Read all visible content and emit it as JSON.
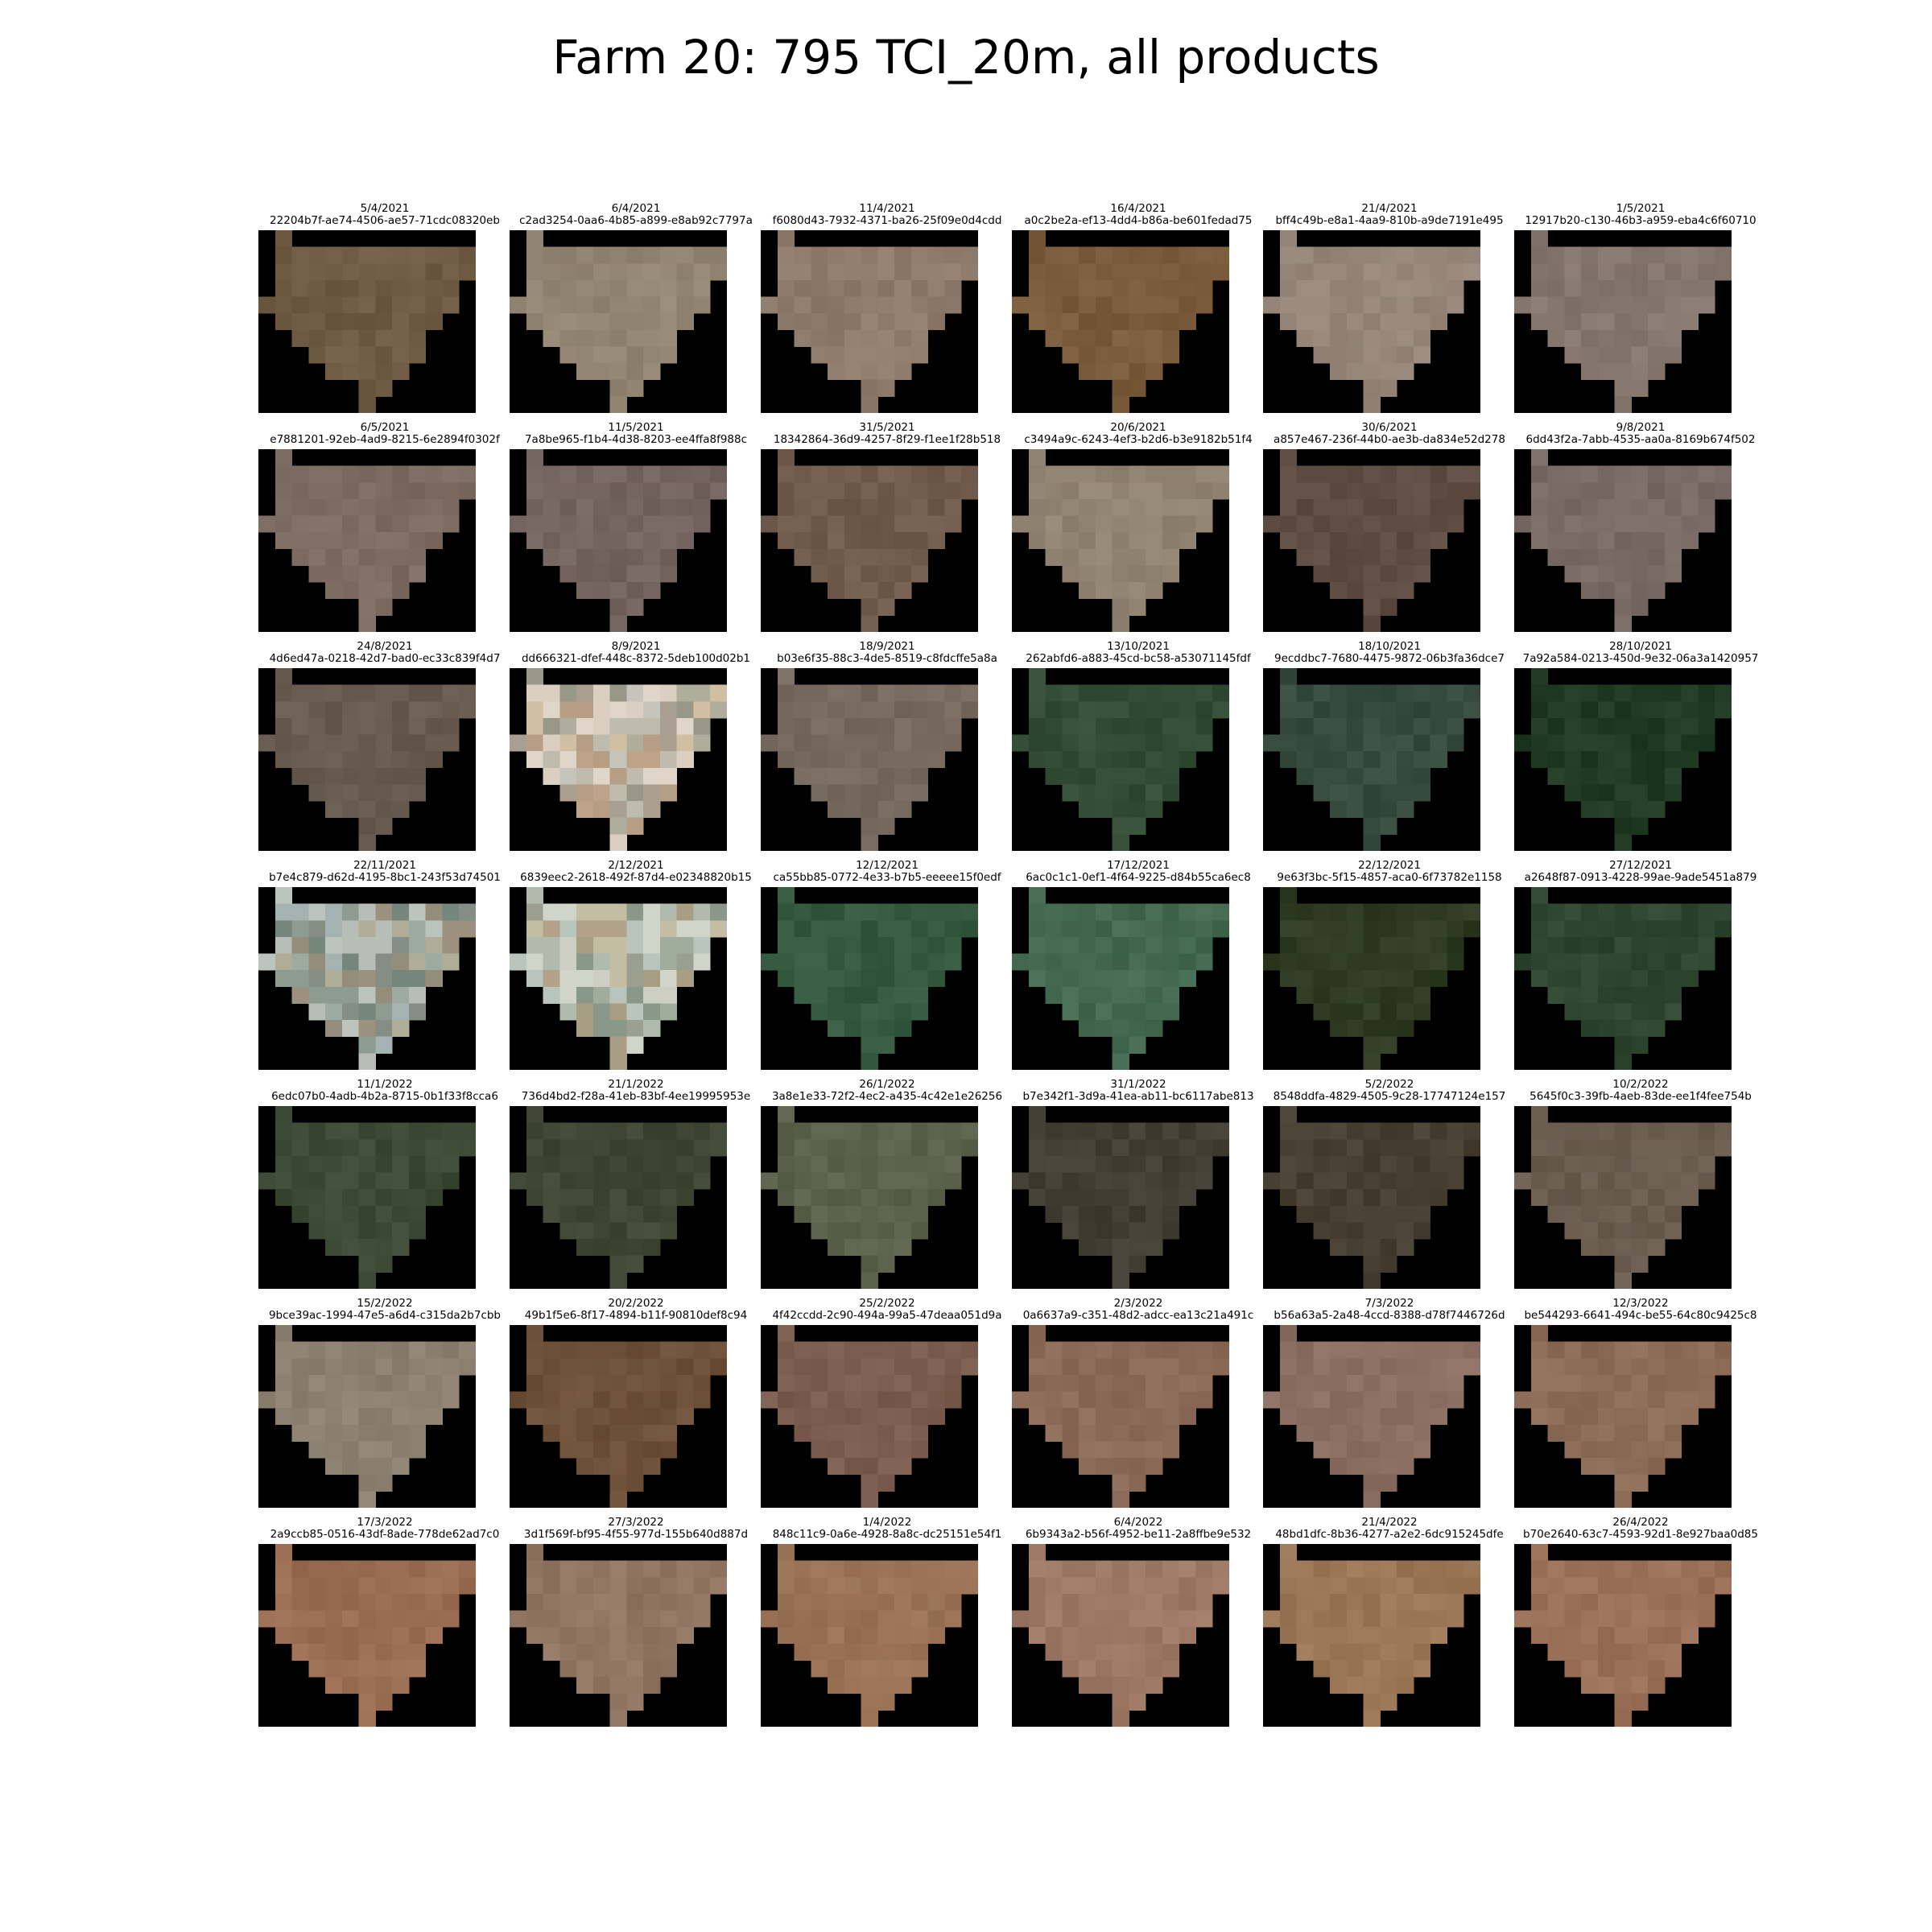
{
  "title": "Farm 20: 795 TCI_20m, all products",
  "tiles": [
    {
      "date": "5/4/2021",
      "id": "22204b7f-ae74-4506-ae57-71cdc08320eb",
      "color": "#6f5a43",
      "variant": "plain"
    },
    {
      "date": "6/4/2021",
      "id": "c2ad3254-0aa6-4b85-a899-e8ab92c7797a",
      "color": "#928571",
      "variant": "plain"
    },
    {
      "date": "11/4/2021",
      "id": "f6080d43-7932-4371-ba26-25f09e0d4cdd",
      "color": "#8f7b6b",
      "variant": "plain"
    },
    {
      "date": "16/4/2021",
      "id": "a0c2be2a-ef13-4dd4-b86a-be601fedad75",
      "color": "#7a5b3c",
      "variant": "plain"
    },
    {
      "date": "21/4/2021",
      "id": "bff4c49b-e8a1-4aa9-810b-a9de7191e495",
      "color": "#958679",
      "variant": "plain"
    },
    {
      "date": "1/5/2021",
      "id": "12917b20-c130-46b3-a959-eba4c6f60710",
      "color": "#86776e",
      "variant": "plain"
    },
    {
      "date": "6/5/2021",
      "id": "e7881201-92eb-4ad9-8215-6e2894f0302f",
      "color": "#7c6c62",
      "variant": "plain"
    },
    {
      "date": "11/5/2021",
      "id": "7a8be965-f1b4-4d38-8203-ee4ffa8f988c",
      "color": "#736460",
      "variant": "plain"
    },
    {
      "date": "31/5/2021",
      "id": "18342864-36d9-4257-8f29-f1ee1f28b518",
      "color": "#705b4d",
      "variant": "plain"
    },
    {
      "date": "20/6/2021",
      "id": "c3494a9c-6243-4ef3-b2d6-b3e9182b51f4",
      "color": "#918472",
      "variant": "plain"
    },
    {
      "date": "30/6/2021",
      "id": "a857e467-236f-44b0-ae3b-da834e52d278",
      "color": "#5f4d43",
      "variant": "plain"
    },
    {
      "date": "9/8/2021",
      "id": "6dd43f2a-7abb-4535-aa0a-8169b674f502",
      "color": "#786b66",
      "variant": "plain"
    },
    {
      "date": "24/8/2021",
      "id": "4d6ed47a-0218-42d7-bad0-ec33c839f4d7",
      "color": "#675a4f",
      "variant": "plain"
    },
    {
      "date": "8/9/2021",
      "id": "dd666321-dfef-448c-8372-5deb100d02b1",
      "color": "#c8b39c",
      "variant": "cloud"
    },
    {
      "date": "18/9/2021",
      "id": "b03e6f35-88c3-4de5-8519-c8fdcffe5a8a",
      "color": "#766a5f",
      "variant": "plain"
    },
    {
      "date": "13/10/2021",
      "id": "262abfd6-a883-45cd-bc58-a53071145fdf",
      "color": "#334c36",
      "variant": "plain"
    },
    {
      "date": "18/10/2021",
      "id": "9ecddbc7-7680-4475-9872-06b3fa36dce7",
      "color": "#364a3d",
      "variant": "plain"
    },
    {
      "date": "28/10/2021",
      "id": "7a92a584-0213-450d-9e32-06a3a1420957",
      "color": "#213a24",
      "variant": "plain"
    },
    {
      "date": "22/11/2021",
      "id": "b7e4c879-d62d-4195-8bc1-243f53d74501",
      "color": "#7c8c84",
      "variant": "cloud"
    },
    {
      "date": "2/12/2021",
      "id": "6839eec2-2618-492f-87d4-e02348820b15",
      "color": "#a9b29c",
      "variant": "cloud"
    },
    {
      "date": "12/12/2021",
      "id": "ca55bb85-0772-4e33-b7b5-eeeee15f0edf",
      "color": "#35593e",
      "variant": "plain"
    },
    {
      "date": "17/12/2021",
      "id": "6ac0c1c1-0ef1-4f64-9225-d84b55ca6ec8",
      "color": "#436a50",
      "variant": "plain"
    },
    {
      "date": "22/12/2021",
      "id": "9e63f3bc-5f15-4857-aca0-6f73782e1158",
      "color": "#2e3b22",
      "variant": "plain"
    },
    {
      "date": "27/12/2021",
      "id": "a2648f87-0913-4228-99ae-9ade5451a879",
      "color": "#2e4530",
      "variant": "plain"
    },
    {
      "date": "11/1/2022",
      "id": "6edc07b0-4adb-4b2a-8715-0b1f33f8cca6",
      "color": "#3c4934",
      "variant": "plain"
    },
    {
      "date": "21/1/2022",
      "id": "736d4bd2-f28a-41eb-83bf-4ee19995953e",
      "color": "#3f4633",
      "variant": "plain"
    },
    {
      "date": "26/1/2022",
      "id": "3a8e1e33-72f2-4ec2-a435-4c42e1e26256",
      "color": "#5b614a",
      "variant": "plain"
    },
    {
      "date": "31/1/2022",
      "id": "b7e342f1-3d9a-41ea-ab11-bc6117abe813",
      "color": "#413f34",
      "variant": "plain"
    },
    {
      "date": "5/2/2022",
      "id": "8548ddfa-4829-4505-9c28-17747124e157",
      "color": "#483f33",
      "variant": "plain"
    },
    {
      "date": "10/2/2022",
      "id": "5645f0c3-39fb-4aeb-83de-ee1f4fee754b",
      "color": "#6a5d50",
      "variant": "plain"
    },
    {
      "date": "15/2/2022",
      "id": "9bce39ac-1994-47e5-a6d4-c315da2b7cbb",
      "color": "#8c8171",
      "variant": "plain"
    },
    {
      "date": "20/2/2022",
      "id": "49b1f5e6-8f17-4894-b11f-90810def8c94",
      "color": "#6e4f37",
      "variant": "plain"
    },
    {
      "date": "25/2/2022",
      "id": "4f42ccdd-2c90-494a-99a5-47deaa051d9a",
      "color": "#7a5d4e",
      "variant": "plain"
    },
    {
      "date": "2/3/2022",
      "id": "0a6637a9-c351-48d2-adcc-ea13c21a491c",
      "color": "#8c6b58",
      "variant": "plain"
    },
    {
      "date": "7/3/2022",
      "id": "b56a63a5-2a48-4ccd-8388-d78f7446726d",
      "color": "#8b6f63",
      "variant": "plain"
    },
    {
      "date": "12/3/2022",
      "id": "be544293-6641-494c-be55-64c80c9425c8",
      "color": "#8c6c57",
      "variant": "plain"
    },
    {
      "date": "17/3/2022",
      "id": "2a9ccb85-0516-43df-8ade-778de62ad7c0",
      "color": "#9a6d52",
      "variant": "plain"
    },
    {
      "date": "27/3/2022",
      "id": "3d1f569f-bf95-4f55-977d-155b640d887d",
      "color": "#8f7562",
      "variant": "plain"
    },
    {
      "date": "1/4/2022",
      "id": "848c11c9-0a6e-4928-8a8c-dc25151e54f1",
      "color": "#9a7357",
      "variant": "plain"
    },
    {
      "date": "6/4/2022",
      "id": "6b9343a2-b56f-4952-be11-2a8ffbe9e532",
      "color": "#9c7865",
      "variant": "plain"
    },
    {
      "date": "21/4/2022",
      "id": "48bd1dfc-8b36-4277-a2e2-6dc915245dfe",
      "color": "#9a7656",
      "variant": "plain"
    },
    {
      "date": "26/4/2022",
      "id": "b70e2640-63c7-4593-92d1-8e927baa0d85",
      "color": "#9a7158",
      "variant": "plain"
    }
  ]
}
